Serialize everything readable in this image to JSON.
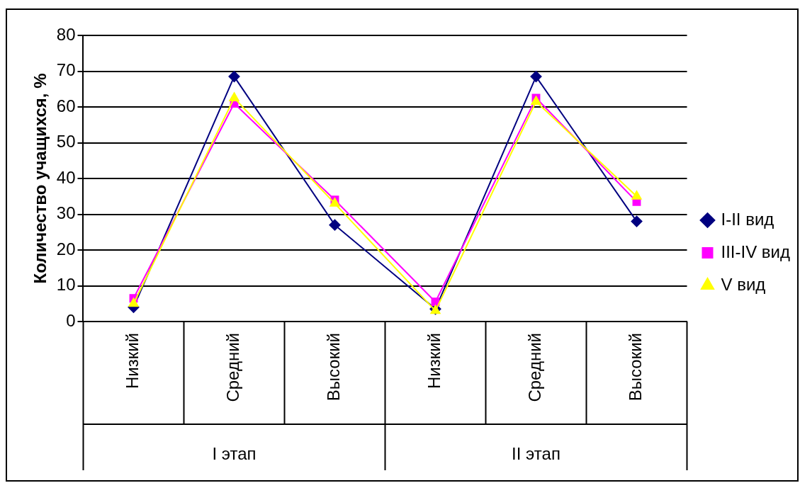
{
  "chart_data": {
    "type": "line",
    "ylabel": "Количество учащихся, %",
    "categories": [
      "Низкий",
      "Средний",
      "Высокий",
      "Низкий",
      "Средний",
      "Высокий"
    ],
    "series": [
      {
        "name": "I-II вид",
        "color": "#000080",
        "marker": "diamond",
        "values": [
          4,
          68.5,
          27,
          3.5,
          68.5,
          28
        ]
      },
      {
        "name": "III-IV вид",
        "color": "#ff00ff",
        "marker": "square",
        "values": [
          6.5,
          61,
          34,
          5.5,
          62.5,
          33.5
        ]
      },
      {
        "name": "V вид",
        "color": "#ffff00",
        "marker": "triangle",
        "values": [
          5,
          62.5,
          33,
          3,
          61.5,
          35
        ]
      }
    ],
    "ylim": [
      0,
      80
    ],
    "yticks": [
      0,
      10,
      20,
      30,
      40,
      50,
      60,
      70,
      80
    ],
    "grid": "y",
    "legend": "right",
    "annotations": [
      "I этап",
      "II этап"
    ]
  }
}
